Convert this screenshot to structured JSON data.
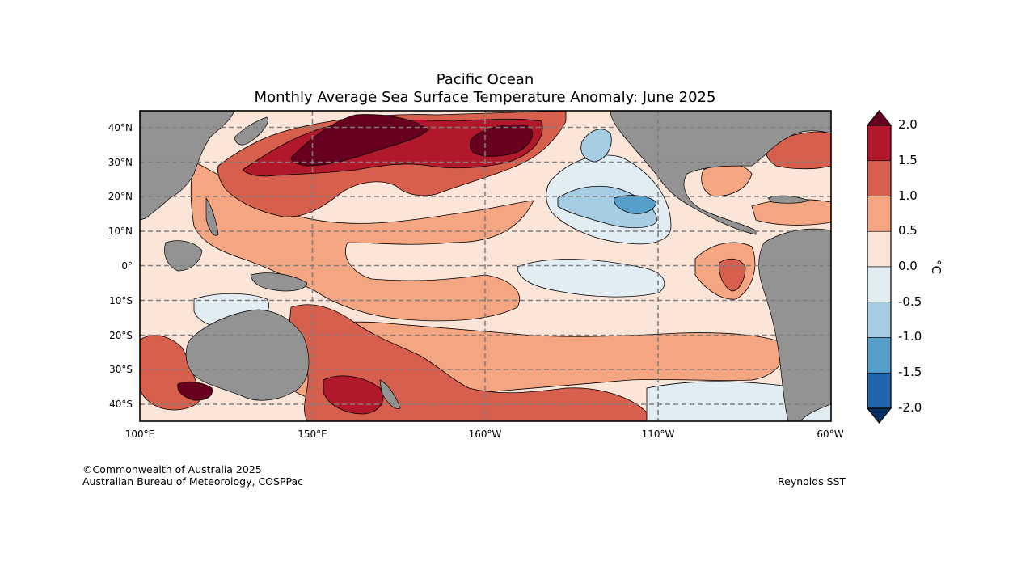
{
  "title": "Pacific Ocean",
  "subtitle": "Monthly Average Sea Surface Temperature Anomaly: June 2025",
  "lat_labels": [
    "40°N",
    "30°N",
    "20°N",
    "10°N",
    "0°",
    "10°S",
    "20°S",
    "30°S",
    "40°S"
  ],
  "lon_labels": [
    "100°E",
    "150°E",
    "160°W",
    "110°W",
    "60°W"
  ],
  "colorbar": {
    "unit": "°C",
    "tick_labels": [
      "2.0",
      "1.5",
      "1.0",
      "0.5",
      "0.0",
      "-0.5",
      "-1.0",
      "-1.5",
      "-2.0"
    ],
    "colors": [
      "#67001f",
      "#b2182b",
      "#d6604d",
      "#f4a582",
      "#fbe5d9",
      "#e1ecf3",
      "#a6cde3",
      "#569fca",
      "#2166ac",
      "#053061"
    ],
    "extend": "both"
  },
  "colors": {
    "land": "#939393",
    "grid": "#7f7f7f",
    "warm_strong": "#67001f",
    "warm": "#b2182b",
    "warm_mid": "#d6604d",
    "warm_light": "#f4a582",
    "neutral_warm": "#fbe5d9",
    "neutral_cool": "#e1ecf3",
    "cool_light": "#a6cde3",
    "cool_mid": "#569fca",
    "cool": "#2166ac"
  },
  "credit": {
    "line1": "©Commonwealth of Australia 2025",
    "line2": "Australian Bureau of Meteorology, COSPPac"
  },
  "source": "Reynolds SST"
}
